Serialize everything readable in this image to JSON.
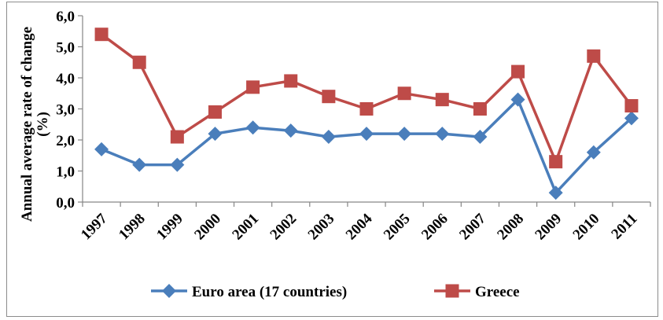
{
  "chart_data": {
    "type": "line",
    "title": "",
    "xlabel": "",
    "ylabel": "Annual average rate of change (%)",
    "ylabel_lines": [
      "Annual average rate of change",
      "(%)"
    ],
    "ylim": [
      0,
      6
    ],
    "yticks": [
      "0,0",
      "1,0",
      "2,0",
      "3,0",
      "4,0",
      "5,0",
      "6,0"
    ],
    "grid": false,
    "legend_position": "bottom",
    "categories": [
      "1997",
      "1998",
      "1999",
      "2000",
      "2001",
      "2002",
      "2003",
      "2004",
      "2005",
      "2006",
      "2007",
      "2008",
      "2009",
      "2010",
      "2011"
    ],
    "series": [
      {
        "name": "Euro area (17 countries)",
        "color": "#4a7ebb",
        "marker": "diamond",
        "values": [
          1.7,
          1.2,
          1.2,
          2.2,
          2.4,
          2.3,
          2.1,
          2.2,
          2.2,
          2.2,
          2.1,
          3.3,
          0.3,
          1.6,
          2.7
        ]
      },
      {
        "name": "Greece",
        "color": "#be4b48",
        "marker": "square",
        "values": [
          5.4,
          4.5,
          2.1,
          2.9,
          3.7,
          3.9,
          3.4,
          3.0,
          3.5,
          3.3,
          3.0,
          4.2,
          1.3,
          4.7,
          3.1
        ]
      }
    ]
  }
}
